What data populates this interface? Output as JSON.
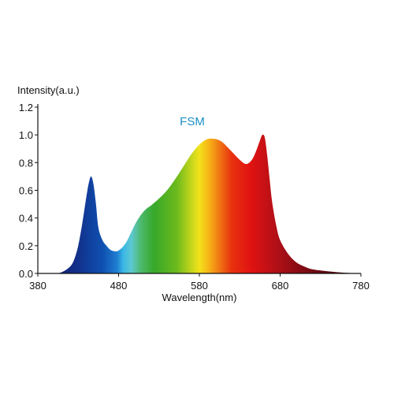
{
  "chart_data": {
    "type": "area",
    "title": "FSM",
    "ylabel": "Intensity(a.u.)",
    "xlabel": "Wavelength(nm)",
    "xlim": [
      380,
      780
    ],
    "ylim": [
      0,
      1.2
    ],
    "x_ticks": [
      "380",
      "480",
      "580",
      "680",
      "780"
    ],
    "y_ticks": [
      "0.0",
      "0.2",
      "0.4",
      "0.6",
      "0.8",
      "1.0",
      "1.2"
    ],
    "grid": false,
    "fill": "visible-spectrum colour gradient",
    "series": [
      {
        "x": [
          380,
          400,
          410,
          420,
          425,
          430,
          435,
          440,
          443,
          446,
          449,
          452,
          455,
          460,
          465,
          470,
          475,
          478,
          481,
          485,
          490,
          495,
          500,
          505,
          510,
          515,
          520,
          530,
          540,
          550,
          560,
          570,
          580,
          590,
          600,
          605,
          610,
          620,
          630,
          638,
          645,
          650,
          655,
          658,
          661,
          664,
          667,
          670,
          675,
          680,
          690,
          700,
          710,
          720,
          740,
          760,
          780
        ],
        "y": [
          0.0,
          0.0,
          0.01,
          0.05,
          0.1,
          0.2,
          0.36,
          0.55,
          0.65,
          0.7,
          0.64,
          0.5,
          0.33,
          0.24,
          0.2,
          0.17,
          0.16,
          0.16,
          0.17,
          0.19,
          0.23,
          0.29,
          0.35,
          0.4,
          0.44,
          0.47,
          0.49,
          0.54,
          0.6,
          0.68,
          0.77,
          0.86,
          0.93,
          0.97,
          0.97,
          0.96,
          0.94,
          0.88,
          0.82,
          0.79,
          0.82,
          0.88,
          0.96,
          1.0,
          0.98,
          0.85,
          0.68,
          0.52,
          0.35,
          0.24,
          0.14,
          0.08,
          0.05,
          0.03,
          0.015,
          0.005,
          0.0
        ]
      }
    ]
  }
}
